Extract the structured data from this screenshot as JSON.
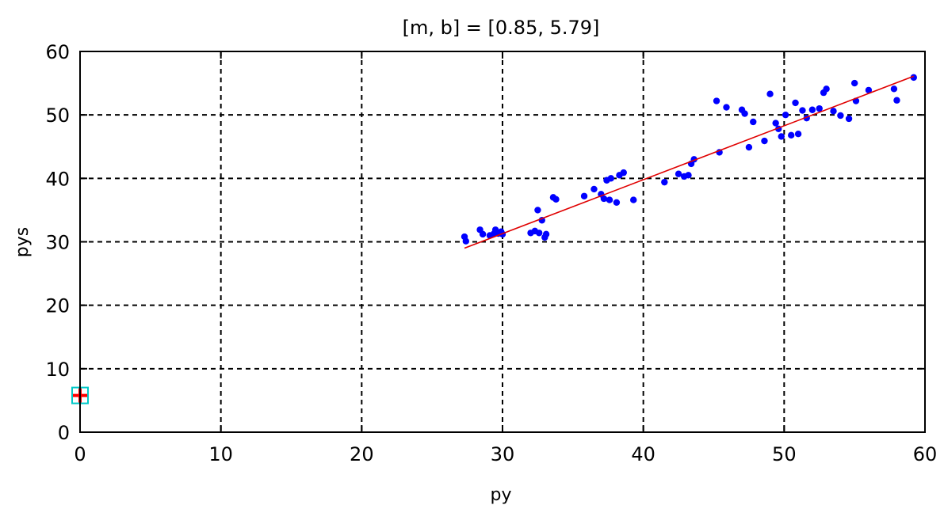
{
  "chart_data": {
    "type": "scatter",
    "title": "[m, b] =  [0.85, 5.79]",
    "xlabel": "py",
    "ylabel": "pys",
    "xlim": [
      0,
      60
    ],
    "ylim": [
      0,
      60
    ],
    "xticks": [
      "0",
      "10",
      "20",
      "30",
      "40",
      "50",
      "60"
    ],
    "yticks": [
      "0",
      "10",
      "20",
      "30",
      "40",
      "50",
      "60"
    ],
    "grid": true,
    "series": [
      {
        "marker": "dot",
        "color": "#0000ff",
        "x": [
          27.3,
          27.4,
          28.4,
          28.6,
          29.1,
          29.4,
          29.5,
          29.7,
          29.9,
          30.0,
          32.0,
          32.3,
          32.5,
          32.6,
          32.8,
          33.0,
          33.1,
          33.6,
          33.8,
          35.8,
          36.5,
          37.0,
          37.2,
          37.4,
          37.6,
          37.7,
          38.1,
          38.3,
          38.6,
          39.3,
          41.5,
          42.5,
          42.9,
          43.2,
          43.4,
          43.6,
          45.2,
          45.4,
          45.9,
          47.0,
          47.2,
          47.5,
          47.8,
          48.6,
          49.0,
          49.4,
          49.6,
          49.8,
          50.1,
          50.5,
          50.8,
          51.0,
          51.3,
          51.6,
          52.0,
          52.5,
          52.8,
          53.0,
          53.5,
          54.0,
          54.6,
          55.0,
          55.1,
          56.0,
          57.8,
          58.0,
          59.2
        ],
        "y": [
          30.8,
          30.1,
          31.9,
          31.2,
          31.0,
          31.3,
          31.9,
          31.3,
          31.6,
          31.2,
          31.4,
          31.7,
          35.0,
          31.4,
          33.4,
          30.7,
          31.2,
          37.0,
          36.7,
          37.2,
          38.3,
          37.5,
          36.8,
          39.7,
          36.6,
          40.0,
          36.2,
          40.5,
          40.9,
          36.6,
          39.4,
          40.7,
          40.3,
          40.5,
          42.3,
          43.0,
          52.2,
          44.1,
          51.2,
          50.8,
          50.2,
          44.9,
          48.9,
          45.9,
          53.3,
          48.7,
          47.8,
          46.6,
          50.0,
          46.8,
          51.9,
          47.0,
          50.7,
          49.5,
          50.8,
          51.0,
          53.5,
          54.1,
          50.6,
          49.9,
          49.4,
          55.0,
          52.2,
          53.9,
          54.1,
          52.3,
          55.9
        ]
      },
      {
        "marker": "line",
        "color": "#e00000",
        "x": [
          27.3,
          59.2
        ],
        "y": [
          29.0,
          56.1
        ]
      },
      {
        "marker": "plus",
        "color": "#ff0000",
        "x": [
          0
        ],
        "y": [
          5.79
        ]
      },
      {
        "marker": "square",
        "color": "#00c8c8",
        "x": [
          0
        ],
        "y": [
          5.79
        ]
      }
    ]
  }
}
